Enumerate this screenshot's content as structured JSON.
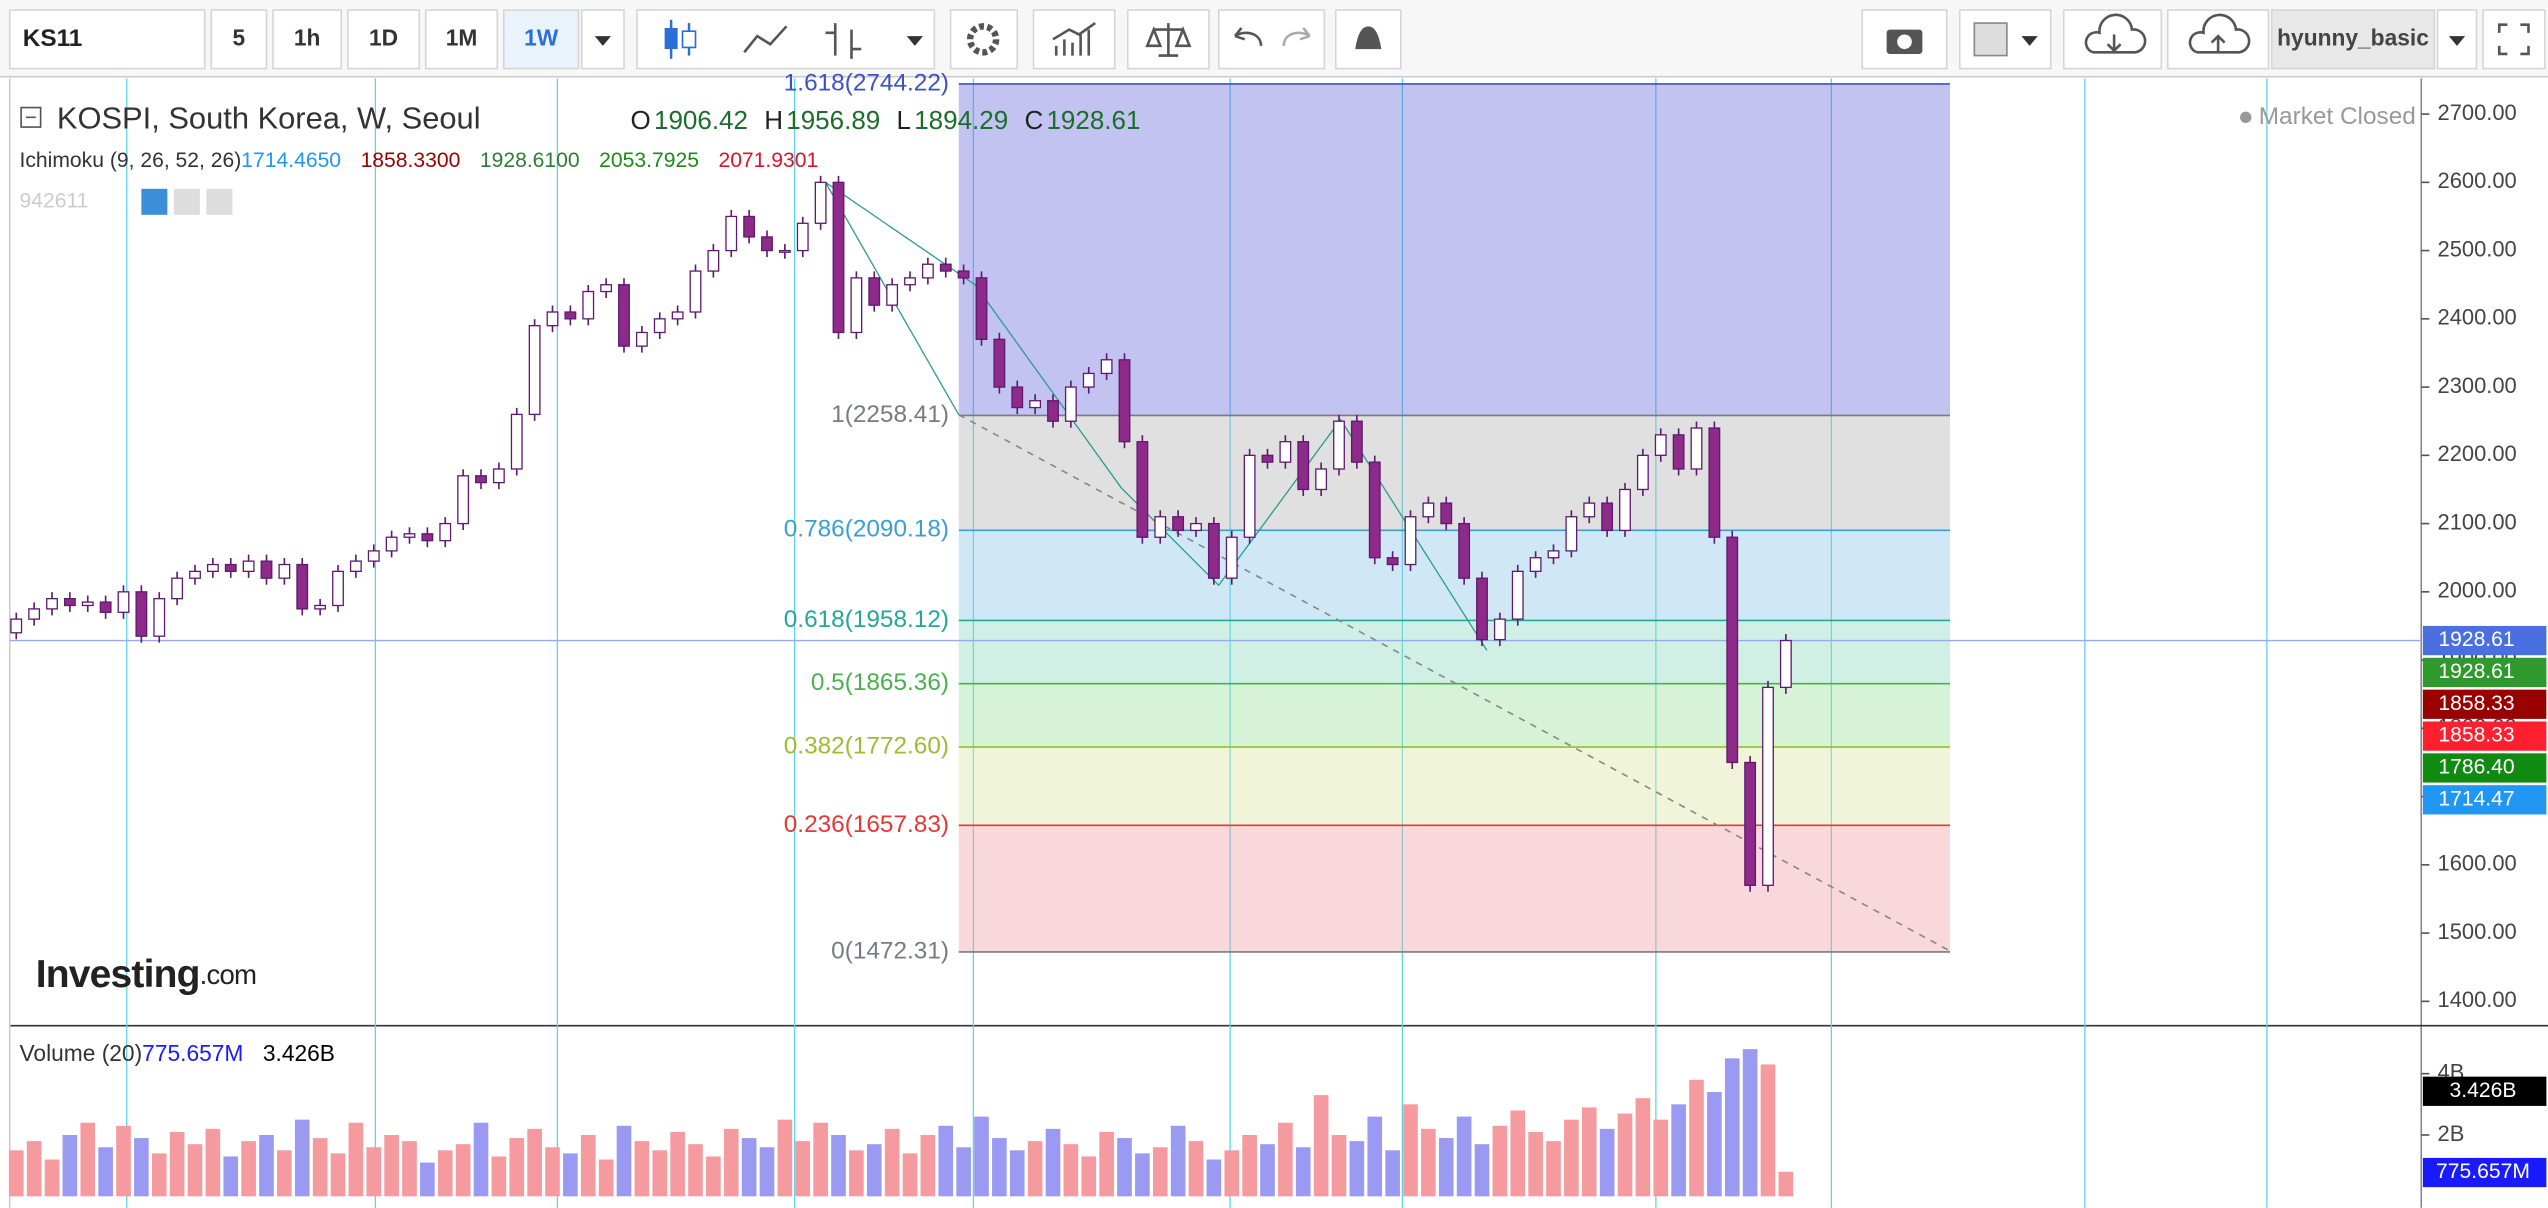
{
  "toolbar": {
    "symbol": "KS11",
    "intervals": [
      "5",
      "1h",
      "1D",
      "1M",
      "1W"
    ],
    "active_interval": 4,
    "user": "hyunny_basic"
  },
  "legend": {
    "title": "KOSPI, South Korea, W, Seoul",
    "ohlc": [
      {
        "key": "O",
        "value": 1906.42
      },
      {
        "key": "H",
        "value": 1956.89
      },
      {
        "key": "L",
        "value": 1894.29
      },
      {
        "key": "C",
        "value": 1928.61
      }
    ],
    "ichimoku": {
      "name": "Ichimoku (9, 26, 52, 26)",
      "values": [
        {
          "text": "1714.4650",
          "color": "#2196f3"
        },
        {
          "text": "1858.3300",
          "color": "#990000"
        },
        {
          "text": "1928.6100",
          "color": "#2e7d32"
        },
        {
          "text": "2053.7925",
          "color": "#1b8a1b"
        },
        {
          "text": "2071.9301",
          "color": "#e0102a"
        }
      ]
    },
    "extra": "942611",
    "status": "Market Closed"
  },
  "logo": {
    "brand": "Investing",
    "suffix": ".com"
  },
  "chart_data": {
    "type": "candlestick",
    "first_open": 1940,
    "close": [
      1960,
      1975,
      1990,
      1980,
      1985,
      1970,
      2000,
      1935,
      1990,
      2020,
      2030,
      2040,
      2030,
      2045,
      2020,
      2040,
      1975,
      1980,
      2030,
      2045,
      2060,
      2080,
      2085,
      2075,
      2100,
      2170,
      2160,
      2180,
      2260,
      2390,
      2410,
      2400,
      2440,
      2450,
      2360,
      2380,
      2400,
      2410,
      2470,
      2500,
      2550,
      2520,
      2500,
      2500,
      2540,
      2600,
      2380,
      2460,
      2420,
      2450,
      2460,
      2480,
      2470,
      2460,
      2370,
      2300,
      2270,
      2280,
      2250,
      2300,
      2320,
      2340,
      2220,
      2080,
      2110,
      2090,
      2100,
      2020,
      2080,
      2200,
      2190,
      2220,
      2150,
      2180,
      2250,
      2190,
      2050,
      2040,
      2110,
      2130,
      2100,
      2020,
      1930,
      1960,
      2030,
      2050,
      2060,
      2110,
      2130,
      2090,
      2150,
      2200,
      2230,
      2180,
      2240,
      2080,
      1750,
      1570,
      1860,
      1928.61
    ],
    "up_color": "#ffffff",
    "down_color": "#8e2a8a",
    "edge_color": "#5d1a6e",
    "ylim": [
      1366.7,
      2766.7
    ],
    "yticks": [
      {
        "value": 1400,
        "label": "1400.00"
      },
      {
        "value": 1500,
        "label": "1500.00"
      },
      {
        "value": 1600,
        "label": "1600.00"
      },
      {
        "value": 1700,
        "label": "1700.00"
      },
      {
        "value": 1800,
        "label": "1800.00"
      },
      {
        "value": 1900,
        "label": "1900.00"
      },
      {
        "value": 2000,
        "label": "2000.00"
      },
      {
        "value": 2100,
        "label": "2100.00"
      },
      {
        "value": 2200,
        "label": "2200.00"
      },
      {
        "value": 2300,
        "label": "2300.00"
      },
      {
        "value": 2400,
        "label": "2400.00"
      },
      {
        "value": 2500,
        "label": "2500.00"
      },
      {
        "value": 2600,
        "label": "2600.00"
      },
      {
        "value": 2700,
        "label": "2700.00"
      }
    ],
    "fib_levels": [
      {
        "label": "1.618(2744.22)",
        "value": 2744.22,
        "color": "#3d50c8",
        "fill": "#6f6fe0"
      },
      {
        "label": "1(2258.41)",
        "value": 2258.41,
        "color": "#787b86",
        "fill": "#b5b5b5"
      },
      {
        "label": "0.786(2090.18)",
        "value": 2090.18,
        "color": "#3c9fd0",
        "fill": "#8fc8ea"
      },
      {
        "label": "0.618(1958.12)",
        "value": 1958.12,
        "color": "#26a69a",
        "fill": "#8fdcc0"
      },
      {
        "label": "0.5(1865.36)",
        "value": 1865.36,
        "color": "#4caf50",
        "fill": "#9fe39f"
      },
      {
        "label": "0.382(1772.60)",
        "value": 1772.6,
        "color": "#9bbd32",
        "fill": "#dbe8a8"
      },
      {
        "label": "0.236(1657.83)",
        "value": 1657.83,
        "color": "#e53935",
        "fill": "#eea3a8"
      },
      {
        "label": "0(1472.31)",
        "value": 1472.31,
        "color": "#787b86",
        "fill": "#eea3a8"
      }
    ],
    "price_tags": [
      {
        "label": "1928.61",
        "value": 1928.61,
        "color": "#4a6fe0"
      },
      {
        "label": "1928.61",
        "value": 1928.61,
        "color": "#2e9a2e"
      },
      {
        "label": "1858.33",
        "value": 1858.33,
        "color": "#990000"
      },
      {
        "label": "1858.33",
        "value": 1858.33,
        "color": "#ff1f2e"
      },
      {
        "label": "1786.40",
        "value": 1786.4,
        "color": "#118a11"
      },
      {
        "label": "1714.47",
        "value": 1714.47,
        "color": "#2196f3"
      }
    ]
  },
  "volume": {
    "name": "Volume (20)",
    "legend_values": [
      {
        "text": "775.657M",
        "color": "#1a1aff"
      },
      {
        "text": "3.426B",
        "color": "#000000"
      }
    ],
    "values": [
      1.5,
      1.8,
      1.2,
      2.0,
      2.4,
      1.6,
      2.3,
      1.9,
      1.4,
      2.1,
      1.7,
      2.2,
      1.3,
      1.8,
      2.0,
      1.5,
      2.5,
      1.9,
      1.4,
      2.4,
      1.6,
      2.0,
      1.8,
      1.1,
      1.5,
      1.7,
      2.4,
      1.3,
      1.9,
      2.2,
      1.6,
      1.4,
      2.0,
      1.2,
      2.3,
      1.8,
      1.5,
      2.1,
      1.7,
      1.3,
      2.2,
      1.9,
      1.6,
      2.5,
      1.8,
      2.4,
      2.0,
      1.5,
      1.7,
      2.2,
      1.4,
      2.0,
      2.3,
      1.6,
      2.6,
      1.9,
      1.5,
      1.8,
      2.2,
      1.7,
      1.3,
      2.1,
      1.9,
      1.4,
      1.6,
      2.3,
      1.8,
      1.2,
      1.5,
      2.0,
      1.7,
      2.4,
      1.6,
      3.3,
      2.0,
      1.8,
      2.6,
      1.5,
      3.0,
      2.2,
      1.9,
      2.6,
      1.7,
      2.3,
      2.8,
      2.1,
      1.8,
      2.5,
      2.9,
      2.2,
      2.7,
      3.2,
      2.5,
      3.0,
      3.8,
      3.4,
      4.5,
      4.8,
      4.3,
      0.8
    ],
    "up_color": "#f59a9e",
    "down_color": "#9a9af2",
    "ylim": [
      0,
      5.3
    ],
    "yticks": [
      {
        "value": 2,
        "label": "2B"
      },
      {
        "value": 4,
        "label": "4B"
      }
    ],
    "tags": [
      {
        "label": "3.426B",
        "value": 3.426,
        "color": "#000000"
      },
      {
        "label": "775.657M",
        "value": 0.775657,
        "color": "#1a1aff"
      }
    ]
  }
}
